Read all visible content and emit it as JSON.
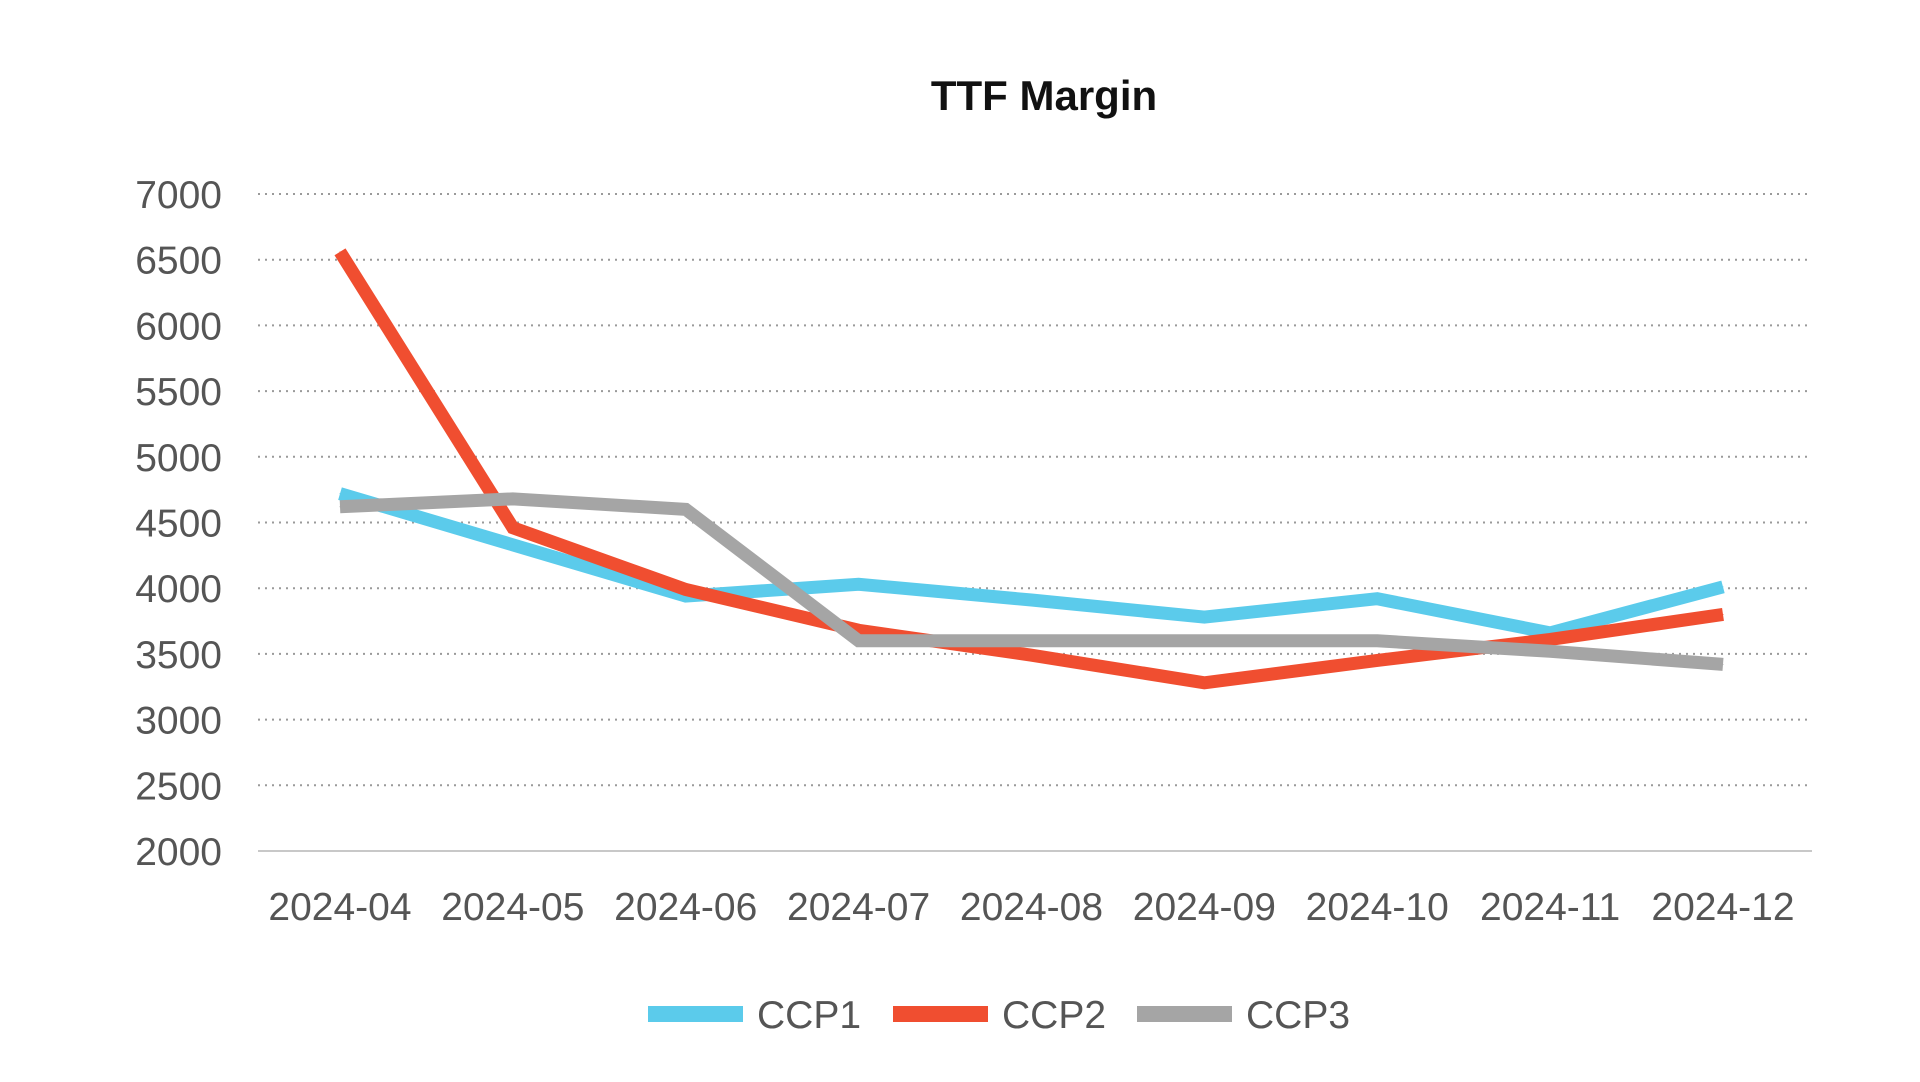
{
  "chart_data": {
    "type": "line",
    "title": "TTF Margin",
    "xlabel": "",
    "ylabel": "",
    "categories": [
      "2024-04",
      "2024-05",
      "2024-06",
      "2024-07",
      "2024-08",
      "2024-09",
      "2024-10",
      "2024-11",
      "2024-12"
    ],
    "y_ticks": [
      "2000",
      "2500",
      "3000",
      "3500",
      "4000",
      "4500",
      "5000",
      "5500",
      "6000",
      "6500",
      "7000"
    ],
    "ylim": [
      2000,
      7000
    ],
    "grid": "horizontal dotted",
    "legend_position": "bottom",
    "series": [
      {
        "name": "CCP1",
        "color": "#5BCBEB",
        "values": [
          4720,
          4330,
          3940,
          4030,
          3910,
          3780,
          3920,
          3660,
          4010
        ]
      },
      {
        "name": "CCP2",
        "color": "#F04E30",
        "values": [
          6560,
          4460,
          3990,
          3680,
          3490,
          3280,
          3450,
          3610,
          3800
        ]
      },
      {
        "name": "CCP3",
        "color": "#A5A5A5",
        "values": [
          4620,
          4680,
          4600,
          3600,
          3600,
          3600,
          3600,
          3520,
          3420
        ]
      }
    ]
  }
}
